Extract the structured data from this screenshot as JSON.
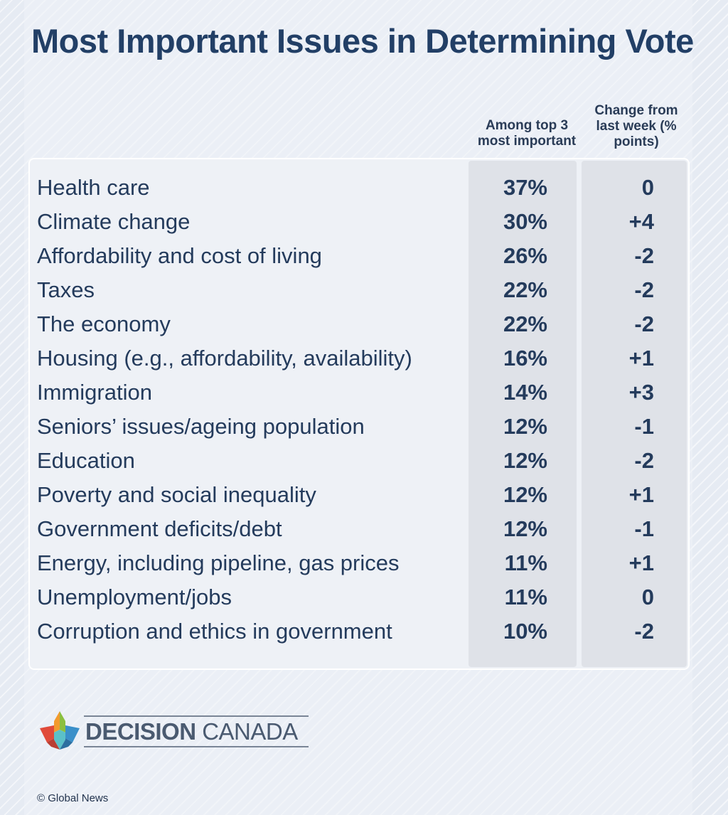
{
  "title": "Most Important Issues in Determining Vote",
  "columns": {
    "top3": "Among top 3 most important",
    "change": "Change from last week (% points)"
  },
  "chart_data": {
    "type": "table",
    "title": "Most Important Issues in Determining Vote",
    "headers": [
      "",
      "Among top 3 most important",
      "Change from last week (% points)"
    ],
    "rows": [
      {
        "issue": "Health care",
        "pct": "37%",
        "change": "0"
      },
      {
        "issue": "Climate change",
        "pct": "30%",
        "change": "+4"
      },
      {
        "issue": "Affordability and cost of living",
        "pct": "26%",
        "change": "-2"
      },
      {
        "issue": "Taxes",
        "pct": "22%",
        "change": "-2"
      },
      {
        "issue": "The economy",
        "pct": "22%",
        "change": "-2"
      },
      {
        "issue": "Housing (e.g., affordability, availability)",
        "pct": "16%",
        "change": "+1"
      },
      {
        "issue": "Immigration",
        "pct": "14%",
        "change": "+3"
      },
      {
        "issue": "Seniors’ issues/ageing population",
        "pct": "12%",
        "change": "-1"
      },
      {
        "issue": "Education",
        "pct": "12%",
        "change": "-2"
      },
      {
        "issue": "Poverty and social inequality",
        "pct": "12%",
        "change": "+1"
      },
      {
        "issue": "Government deficits/debt",
        "pct": "12%",
        "change": "-1"
      },
      {
        "issue": "Energy, including pipeline, gas prices",
        "pct": "11%",
        "change": "+1"
      },
      {
        "issue": "Unemployment/jobs",
        "pct": "11%",
        "change": "0"
      },
      {
        "issue": "Corruption and ethics in government",
        "pct": "10%",
        "change": "-2"
      }
    ]
  },
  "logo": {
    "bold": "DECISION",
    "light": "CANADA"
  },
  "credit": "© Global News",
  "colors": {
    "title": "#223f66",
    "text": "#243b5c",
    "shade": "#dfe2e8",
    "leaf_red": "#e04a3a",
    "leaf_orange": "#f29a2e",
    "leaf_green": "#8cbf3f",
    "leaf_blue": "#3a8fc9",
    "leaf_teal": "#5bc0c8"
  }
}
